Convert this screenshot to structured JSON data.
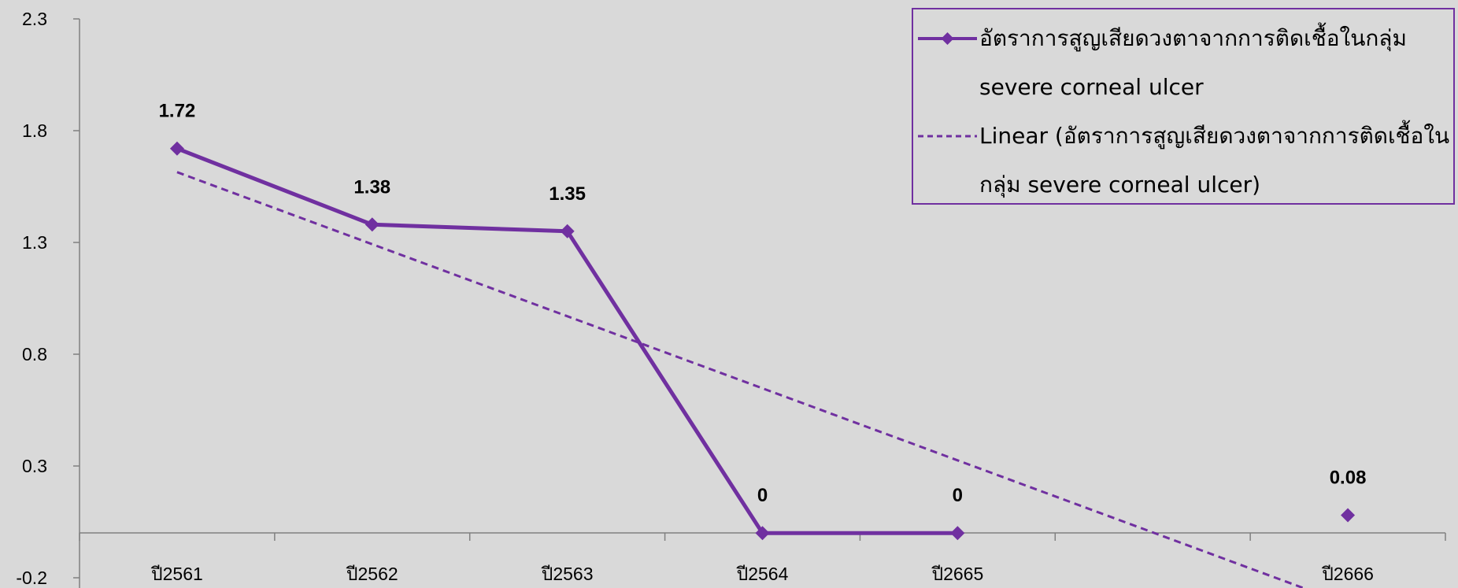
{
  "chart_data": {
    "type": "line",
    "categories": [
      "ปี2561",
      "ปี2562",
      "ปี2563",
      "ปี2564",
      "ปี2665",
      "",
      "ปี2666"
    ],
    "series": [
      {
        "name": "อัตราการสูญเสียดวงตาจากการติดเชื้อในกลุ่ม severe corneal ulcer",
        "values": [
          1.72,
          1.38,
          1.35,
          0,
          0,
          null,
          0.08
        ],
        "data_labels": [
          "1.72",
          "1.38",
          "1.35",
          "0",
          "0",
          "",
          "0.08"
        ],
        "color": "#7030a0"
      }
    ],
    "trendline": {
      "type": "linear",
      "label": "Linear (อัตราการสูญเสียดวงตาจากการติดเชื้อในกลุ่ม severe corneal ulcer)",
      "color": "#7030a0"
    },
    "yticks": [
      "-0.2",
      "0.3",
      "0.8",
      "1.3",
      "1.8",
      "2.3"
    ],
    "ylim": [
      -0.2,
      2.3
    ],
    "title": "",
    "xlabel": "",
    "ylabel": "",
    "grid": false,
    "legend": "top-right"
  },
  "legend": {
    "series_label": "อัตราการสูญเสียดวงตาจากการติดเชื้อในกลุ่ม severe corneal ulcer",
    "trend_label": "Linear (อัตราการสูญเสียดวงตาจากการติดเชื้อในกลุ่ม severe corneal ulcer)"
  }
}
